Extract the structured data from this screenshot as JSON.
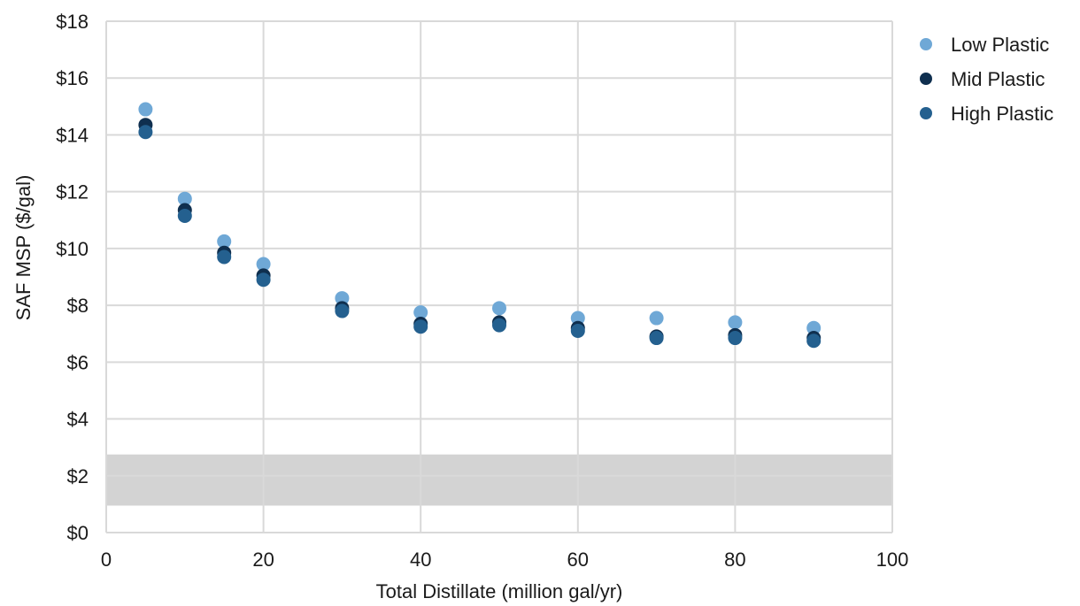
{
  "chart_data": {
    "type": "scatter",
    "title": "",
    "xlabel": "Total Distillate (million gal/yr)",
    "ylabel": "SAF MSP ($/gal)",
    "xlim": [
      0,
      100
    ],
    "ylim": [
      0,
      18
    ],
    "x_ticks": [
      0,
      20,
      40,
      60,
      80,
      100
    ],
    "y_ticks": [
      0,
      2,
      4,
      6,
      8,
      10,
      12,
      14,
      16,
      18
    ],
    "x_tick_labels": [
      "0",
      "20",
      "40",
      "60",
      "80",
      "100"
    ],
    "y_tick_labels": [
      "$0",
      "$2",
      "$4",
      "$6",
      "$8",
      "$10",
      "$12",
      "$14",
      "$16",
      "$18"
    ],
    "grid": true,
    "legend_position": "top-right",
    "shaded_band": {
      "y_from": 0.95,
      "y_to": 2.75,
      "color": "#d3d3d3"
    },
    "series": [
      {
        "name": "Low Plastic",
        "color": "#6fa8d6",
        "points": [
          [
            5,
            14.9
          ],
          [
            10,
            11.75
          ],
          [
            15,
            10.25
          ],
          [
            20,
            9.45
          ],
          [
            30,
            8.25
          ],
          [
            40,
            7.75
          ],
          [
            50,
            7.9
          ],
          [
            60,
            7.55
          ],
          [
            70,
            7.55
          ],
          [
            80,
            7.4
          ],
          [
            90,
            7.2
          ]
        ]
      },
      {
        "name": "Mid Plastic",
        "color": "#0f2f4f",
        "points": [
          [
            5,
            14.35
          ],
          [
            10,
            11.35
          ],
          [
            15,
            9.85
          ],
          [
            20,
            9.05
          ],
          [
            30,
            7.9
          ],
          [
            40,
            7.35
          ],
          [
            50,
            7.4
          ],
          [
            60,
            7.2
          ],
          [
            70,
            6.9
          ],
          [
            80,
            6.95
          ],
          [
            90,
            6.85
          ]
        ]
      },
      {
        "name": "High Plastic",
        "color": "#24608f",
        "points": [
          [
            5,
            14.1
          ],
          [
            10,
            11.15
          ],
          [
            15,
            9.7
          ],
          [
            20,
            8.9
          ],
          [
            30,
            7.8
          ],
          [
            40,
            7.25
          ],
          [
            50,
            7.3
          ],
          [
            60,
            7.1
          ],
          [
            70,
            6.85
          ],
          [
            80,
            6.85
          ],
          [
            90,
            6.75
          ]
        ]
      }
    ]
  }
}
